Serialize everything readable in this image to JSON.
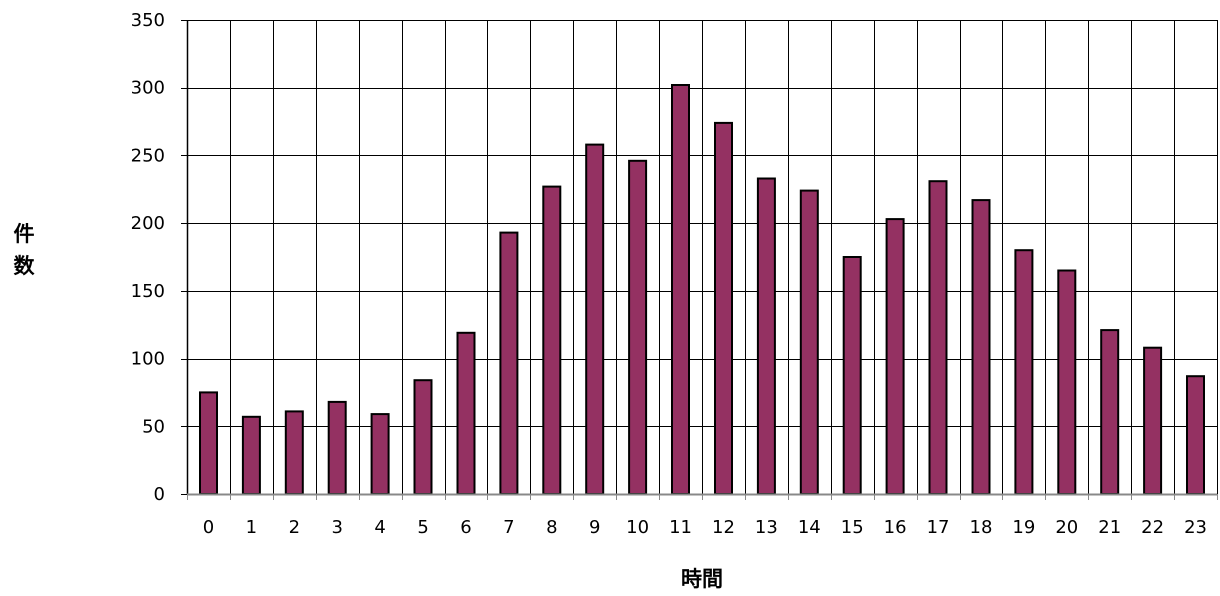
{
  "chart_data": {
    "type": "bar",
    "title": "",
    "xlabel": "時間",
    "ylabel": "件数",
    "categories": [
      "0",
      "1",
      "2",
      "3",
      "4",
      "5",
      "6",
      "7",
      "8",
      "9",
      "10",
      "11",
      "12",
      "13",
      "14",
      "15",
      "16",
      "17",
      "18",
      "19",
      "20",
      "21",
      "22",
      "23"
    ],
    "values": [
      75,
      57,
      61,
      68,
      59,
      84,
      119,
      193,
      227,
      258,
      246,
      302,
      274,
      233,
      224,
      175,
      203,
      231,
      217,
      180,
      165,
      121,
      108,
      87
    ],
    "ylim": [
      0,
      350
    ],
    "yticks": [
      0,
      50,
      100,
      150,
      200,
      250,
      300,
      350
    ],
    "grid": true,
    "legend": "none",
    "bar_color": "#943162",
    "bar_border_color": "#000000"
  }
}
